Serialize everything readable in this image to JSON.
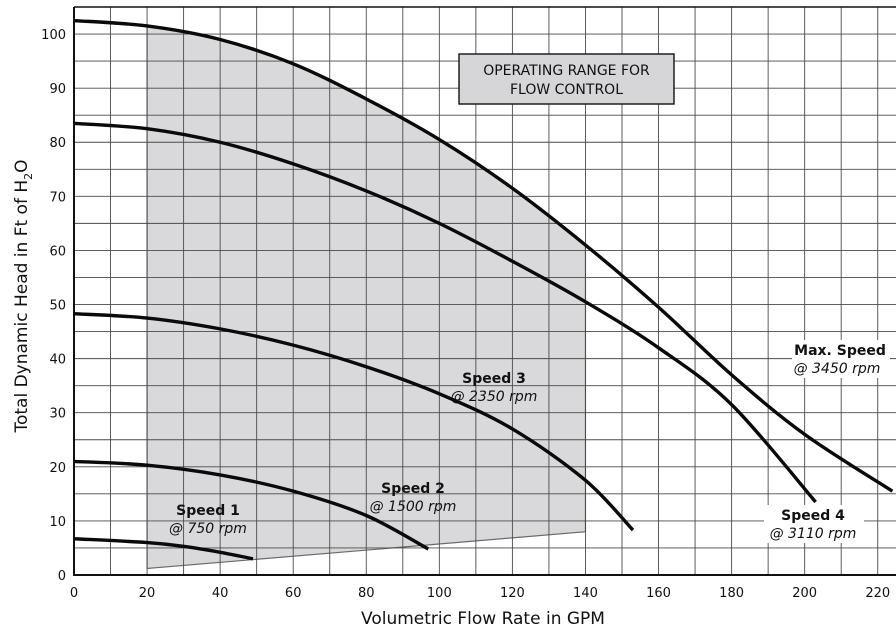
{
  "chart_data": {
    "type": "line",
    "xlabel": "Volumetric Flow Rate in GPM",
    "ylabel_main": "Total Dynamic Head in Ft of H",
    "ylabel_sub": "2",
    "ylabel_end": "O",
    "xlim": [
      0,
      225
    ],
    "ylim": [
      0,
      105
    ],
    "x_ticks": [
      0,
      20,
      40,
      60,
      80,
      100,
      120,
      140,
      160,
      180,
      200,
      220
    ],
    "y_ticks": [
      0,
      10,
      20,
      30,
      40,
      50,
      60,
      70,
      80,
      90,
      100
    ],
    "grid": true,
    "minor_grid_x": 10,
    "minor_grid_y": 5,
    "operating_range": {
      "label_line1": "OPERATING RANGE FOR",
      "label_line2": "FLOW CONTROL",
      "x_range": [
        20,
        140
      ],
      "fill": "#d9d9db"
    },
    "series": [
      {
        "name": "Max. Speed",
        "rpm": "@ 3450 rpm",
        "points": [
          [
            0,
            102.5
          ],
          [
            20,
            101.5
          ],
          [
            40,
            99
          ],
          [
            60,
            94.5
          ],
          [
            80,
            88
          ],
          [
            100,
            80.5
          ],
          [
            120,
            71.5
          ],
          [
            140,
            61
          ],
          [
            160,
            49.5
          ],
          [
            180,
            37
          ],
          [
            200,
            26
          ],
          [
            224,
            15.5
          ]
        ]
      },
      {
        "name": "Speed 4",
        "rpm": "@ 3110 rpm",
        "points": [
          [
            0,
            83.5
          ],
          [
            20,
            82.5
          ],
          [
            40,
            80
          ],
          [
            60,
            76
          ],
          [
            80,
            71
          ],
          [
            100,
            65
          ],
          [
            120,
            58
          ],
          [
            140,
            50.5
          ],
          [
            160,
            42
          ],
          [
            180,
            31.5
          ],
          [
            203,
            13.5
          ]
        ]
      },
      {
        "name": "Speed 3",
        "rpm": "@ 2350 rpm",
        "points": [
          [
            0,
            48.3
          ],
          [
            20,
            47.5
          ],
          [
            40,
            45.5
          ],
          [
            60,
            42.5
          ],
          [
            80,
            38.5
          ],
          [
            100,
            33.5
          ],
          [
            120,
            27
          ],
          [
            140,
            17.5
          ],
          [
            153,
            8.3
          ]
        ]
      },
      {
        "name": "Speed 2",
        "rpm": "@ 1500 rpm",
        "points": [
          [
            0,
            21
          ],
          [
            20,
            20.3
          ],
          [
            40,
            18.5
          ],
          [
            60,
            15.5
          ],
          [
            80,
            11
          ],
          [
            97,
            4.8
          ]
        ]
      },
      {
        "name": "Speed 1",
        "rpm": "@ 750 rpm",
        "points": [
          [
            0,
            6.7
          ],
          [
            20,
            6
          ],
          [
            30,
            5.3
          ],
          [
            40,
            4.2
          ],
          [
            49,
            3
          ]
        ]
      }
    ]
  }
}
